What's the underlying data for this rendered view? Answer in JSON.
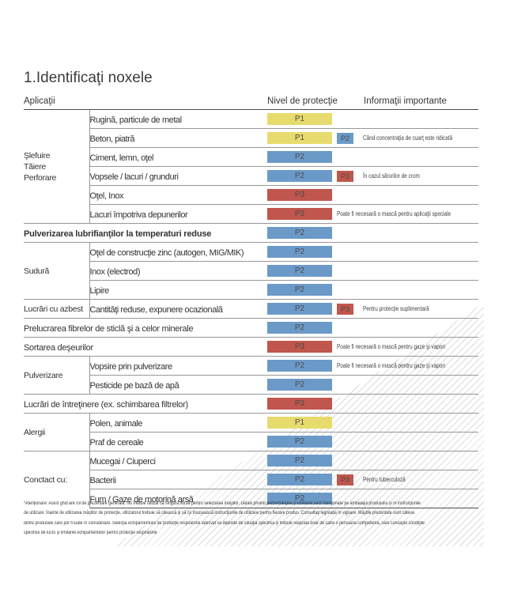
{
  "title": "1.Identificaţi noxele",
  "columns": {
    "applications": "Aplicaţii",
    "protection": "Nivel de protecţie",
    "info": "Informaţii importante"
  },
  "level_colors": {
    "P1": "#e8db6e",
    "P2": "#6b9ac8",
    "P3": "#c0564d"
  },
  "rows": [
    {
      "group": "Şlefuire\nTăiere\nPerforare",
      "rowspan": 6,
      "label": "Rugină, particule de metal",
      "level": "P1"
    },
    {
      "label": "Beton, piatră",
      "level": "P1",
      "chip": "P2",
      "note": "Când concentraţia de cuarţ este ridicată"
    },
    {
      "label": "Ciment, lemn, oţel",
      "level": "P2"
    },
    {
      "label": "Vopsele / lacuri / grunduri",
      "level": "P2",
      "chip": "P3",
      "note": "În cazul sărurilor de crom"
    },
    {
      "label": "Oţel, Inox",
      "level": "P3"
    },
    {
      "label": "Lacuri împotriva depunerilor",
      "level": "P3",
      "note": "Poate fi necesară o mască pentru aplicaţii speciale"
    },
    {
      "full": true,
      "bold": true,
      "label": "Pulverizarea lubrifianţilor la temperaturi reduse",
      "level": "P2"
    },
    {
      "group": "Sudură",
      "rowspan": 3,
      "label": "Oţel de construcţie zinc (autogen, MIG/MIK)",
      "level": "P2"
    },
    {
      "label": "Inox (electrod)",
      "level": "P2"
    },
    {
      "label": "Lipire",
      "level": "P2"
    },
    {
      "group": "Lucrări cu azbest",
      "rowspan": 1,
      "label": "Cantităţi reduse, expunere ocazională",
      "level": "P2",
      "chip": "P3",
      "note": "Pentru protecţie suplimentară"
    },
    {
      "full": true,
      "label": "Prelucrarea fibrelor de sticlă şi a celor minerale",
      "level": "P2"
    },
    {
      "full": true,
      "label": "Sortarea deşeurilor",
      "level": "P3",
      "note": "Poate fi necesară o mască pentru gaze şi vapori"
    },
    {
      "group": "Pulverizare",
      "rowspan": 2,
      "label": "Vopsire prin pulverizare",
      "level": "P2",
      "note": "Poate fi necesară o mască pentru gaze şi vapori"
    },
    {
      "label": "Pesticide pe bază de apă",
      "level": "P2"
    },
    {
      "full": true,
      "label": "Lucrări de întreţinere (ex. schimbarea filtrelor)",
      "level": "P3"
    },
    {
      "group": "Alergii",
      "rowspan": 2,
      "label": "Polen, animale",
      "level": "P1"
    },
    {
      "label": "Praf de cereale",
      "level": "P2"
    },
    {
      "group": "Conctact cu:",
      "rowspan": 3,
      "label": "Mucegai / Ciuperci",
      "level": "P2"
    },
    {
      "label": "Bacterii",
      "level": "P2",
      "chip": "P3",
      "note": "Pentru tuberculoză"
    },
    {
      "label": "Fum / Gaze de motorină arsă",
      "level": "P2"
    }
  ],
  "footnote": {
    "lines": [
      "*Atenţionare: Acest ghid are rol de prezentare generală. Nu trebuie utilizat ca singura sursă pentru selectarea măştilor. Detalii privind performanţele şi limitările sunt menţionate pe ambalajul produsului şi în instrucţiunile",
      "de utilizare. Înainte de utilizarea măştilor de protecţie, utilizatorul trebuie să citească şi să îşi însuşească instrucţiunile de utilizare pentru fiecare produs. Consultaţi legislaţia în vigoare. Măştile prezentate sunt câteva",
      "dintre produsele care pot fi luate în considerare. Selecţia echipamentului de protecţie respiratorie adecvat va depinde de situaţia specifică şi trebuie realizată doar de către o persoană competentă, care cunoaşte condiţiile",
      "specifice de lucru şi limitările echipamentelor pentru protecţie respiratorie"
    ]
  }
}
